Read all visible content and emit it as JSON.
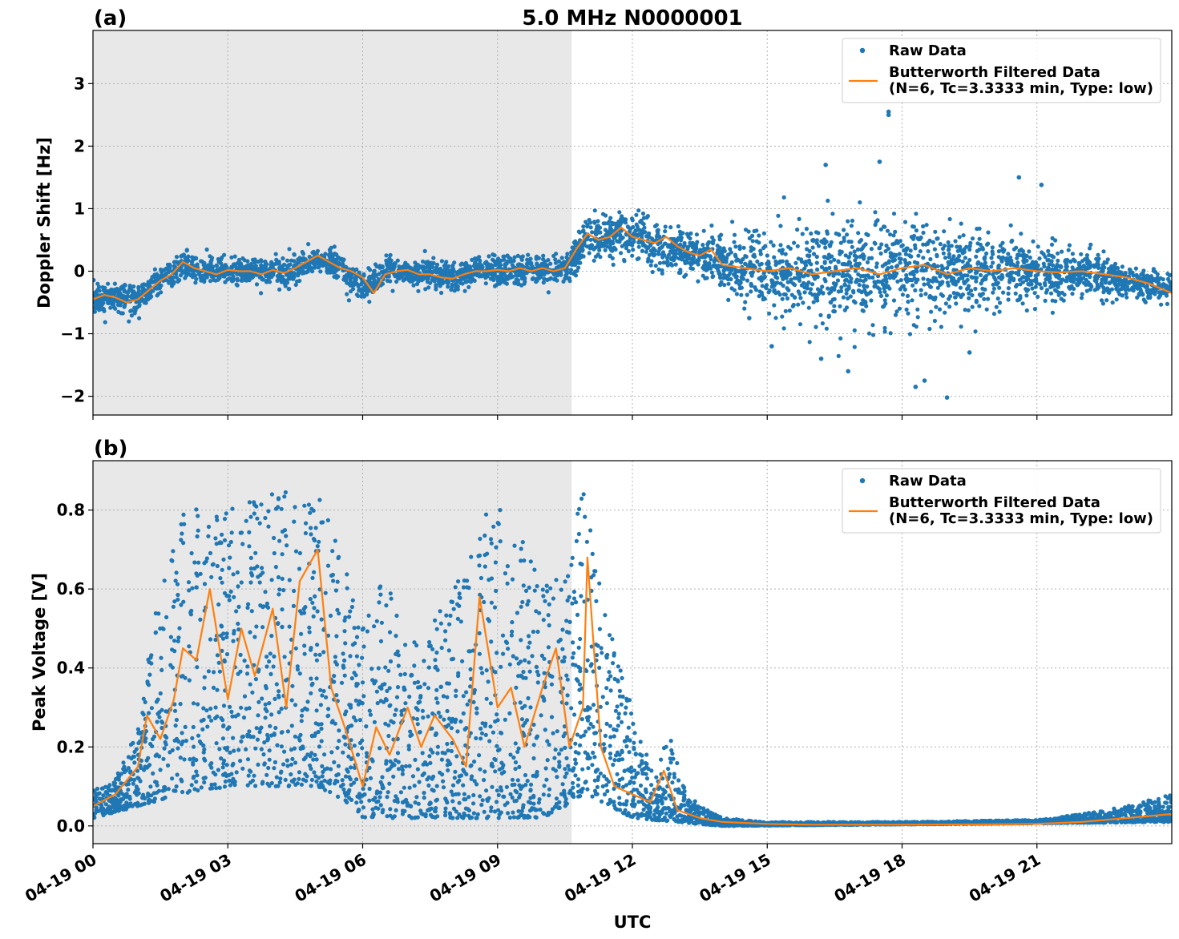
{
  "chart_data": [
    {
      "type": "scatter",
      "panel_label": "(a)",
      "title": "5.0 MHz N0000001",
      "xlabel": "",
      "ylabel": "Doppler Shift [Hz]",
      "x_range_hours": [
        0,
        24
      ],
      "ylim": [
        -2.3,
        3.85
      ],
      "y_ticks": [
        -2,
        -1,
        0,
        1,
        2,
        3
      ],
      "y_tick_labels": [
        "−2",
        "−1",
        "0",
        "1",
        "2",
        "3"
      ],
      "x_ticks_hours": [
        0,
        3,
        6,
        9,
        12,
        15,
        18,
        21
      ],
      "x_tick_labels": [],
      "grid": true,
      "shaded_region_hours": [
        0,
        10.65
      ],
      "legend_position": "top-right",
      "series": [
        {
          "name": "Raw Data",
          "kind": "points",
          "color": "#1f77b4",
          "trend_x": [
            0,
            0.5,
            1,
            1.5,
            2,
            2.5,
            3,
            3.5,
            4,
            4.5,
            5,
            5.5,
            6,
            6.5,
            7,
            7.5,
            8,
            8.5,
            9,
            9.5,
            10,
            10.5,
            11,
            11.5,
            12,
            12.5,
            13,
            13.5,
            14,
            15,
            16,
            17,
            18,
            19,
            20,
            21,
            22,
            23,
            24
          ],
          "trend_y": [
            -0.45,
            -0.4,
            -0.45,
            -0.15,
            0.1,
            0.0,
            0.0,
            0.0,
            0.0,
            0.0,
            0.22,
            0.05,
            -0.3,
            0.0,
            -0.05,
            -0.05,
            -0.1,
            0.0,
            0.0,
            0.0,
            0.0,
            0.0,
            0.55,
            0.55,
            0.6,
            0.4,
            0.3,
            0.25,
            0.1,
            0.0,
            0.0,
            0.0,
            0.0,
            0.0,
            0.0,
            0.0,
            -0.05,
            -0.15,
            -0.3
          ],
          "spread_x": [
            0,
            10.6,
            10.7,
            14,
            15,
            16,
            17,
            18,
            19,
            20,
            21,
            22,
            23,
            24
          ],
          "spread_y": [
            0.25,
            0.25,
            0.35,
            0.4,
            0.6,
            0.85,
            0.95,
            0.95,
            0.8,
            0.65,
            0.5,
            0.4,
            0.3,
            0.25
          ],
          "outliers": [
            [
              17.7,
              2.55
            ],
            [
              17.7,
              2.5
            ],
            [
              18.3,
              -1.85
            ],
            [
              19.0,
              -2.02
            ],
            [
              17.5,
              1.75
            ],
            [
              16.3,
              1.7
            ],
            [
              20.6,
              1.5
            ],
            [
              21.1,
              1.38
            ],
            [
              14.6,
              -0.75
            ],
            [
              15.1,
              -1.2
            ],
            [
              16.2,
              -1.4
            ],
            [
              16.8,
              -1.6
            ],
            [
              18.5,
              -1.75
            ],
            [
              19.5,
              -1.3
            ]
          ]
        },
        {
          "name": "Butterworth Filtered Data\n(N=6, Tc=3.3333 min, Type: low)",
          "kind": "line",
          "color": "#ff7f0e",
          "x": [
            0,
            0.25,
            0.5,
            0.75,
            1,
            1.25,
            1.5,
            1.75,
            2,
            2.25,
            2.5,
            2.75,
            3,
            3.25,
            3.5,
            3.75,
            4,
            4.25,
            4.5,
            4.75,
            5,
            5.25,
            5.5,
            5.75,
            6,
            6.25,
            6.5,
            6.75,
            7,
            7.25,
            7.5,
            7.75,
            8,
            8.25,
            8.5,
            8.75,
            9,
            9.25,
            9.5,
            9.75,
            10,
            10.25,
            10.5,
            10.75,
            11,
            11.25,
            11.5,
            11.75,
            12,
            12.25,
            12.5,
            12.75,
            13,
            13.25,
            13.5,
            13.75,
            14,
            14.5,
            15,
            15.5,
            16,
            16.5,
            17,
            17.5,
            18,
            18.5,
            19,
            19.5,
            20,
            20.5,
            21,
            21.5,
            22,
            22.5,
            23,
            23.5,
            24
          ],
          "y": [
            -0.45,
            -0.38,
            -0.42,
            -0.5,
            -0.45,
            -0.3,
            -0.15,
            -0.05,
            0.15,
            0.05,
            0.0,
            -0.05,
            0.02,
            0.0,
            0.0,
            -0.05,
            0.02,
            -0.03,
            0.05,
            0.15,
            0.25,
            0.15,
            0.05,
            0.0,
            -0.1,
            -0.35,
            -0.05,
            0.0,
            0.02,
            -0.05,
            -0.05,
            -0.1,
            -0.12,
            -0.05,
            0.0,
            0.0,
            0.02,
            0.0,
            0.05,
            0.0,
            0.05,
            0.0,
            0.05,
            0.35,
            0.6,
            0.5,
            0.55,
            0.7,
            0.55,
            0.5,
            0.45,
            0.55,
            0.4,
            0.3,
            0.25,
            0.35,
            0.1,
            0.05,
            0.0,
            0.05,
            -0.05,
            0.0,
            0.05,
            -0.05,
            0.05,
            0.1,
            -0.05,
            0.05,
            0.0,
            0.05,
            0.0,
            -0.02,
            0.0,
            -0.05,
            -0.1,
            -0.2,
            -0.35
          ]
        }
      ]
    },
    {
      "type": "scatter",
      "panel_label": "(b)",
      "title": "",
      "xlabel": "UTC",
      "ylabel": "Peak Voltage [V]",
      "x_range_hours": [
        0,
        24
      ],
      "ylim": [
        -0.045,
        0.925
      ],
      "y_ticks": [
        0.0,
        0.2,
        0.4,
        0.6,
        0.8
      ],
      "y_tick_labels": [
        "0.0",
        "0.2",
        "0.4",
        "0.6",
        "0.8"
      ],
      "x_ticks_hours": [
        0,
        3,
        6,
        9,
        12,
        15,
        18,
        21
      ],
      "x_tick_labels": [
        "04-19 00",
        "04-19 03",
        "04-19 06",
        "04-19 09",
        "04-19 12",
        "04-19 15",
        "04-19 18",
        "04-19 21"
      ],
      "grid": true,
      "shaded_region_hours": [
        0,
        10.65
      ],
      "legend_position": "top-right",
      "series": [
        {
          "name": "Raw Data",
          "kind": "points",
          "color": "#1f77b4",
          "upper_x": [
            0,
            0.5,
            1,
            1.3,
            1.6,
            2,
            2.5,
            3,
            3.5,
            4,
            4.5,
            5,
            5.5,
            5.9,
            6.0,
            6.5,
            7,
            7.5,
            8,
            8.5,
            9,
            9.5,
            10,
            10.5,
            10.9,
            11.0,
            11.3,
            11.6,
            12,
            12.5,
            12.8,
            13.2,
            13.6,
            14,
            15,
            18,
            21,
            22,
            23,
            24
          ],
          "upper_y": [
            0.09,
            0.12,
            0.25,
            0.5,
            0.65,
            0.8,
            0.83,
            0.82,
            0.83,
            0.88,
            0.82,
            0.86,
            0.7,
            0.55,
            0.5,
            0.65,
            0.45,
            0.5,
            0.6,
            0.72,
            0.86,
            0.75,
            0.62,
            0.66,
            0.87,
            0.8,
            0.6,
            0.45,
            0.3,
            0.12,
            0.24,
            0.08,
            0.05,
            0.02,
            0.01,
            0.01,
            0.015,
            0.03,
            0.05,
            0.08
          ],
          "lower_x": [
            0,
            1,
            2,
            3,
            4,
            5,
            5.8,
            6.0,
            7,
            8,
            9,
            10,
            10.5,
            11,
            12,
            13,
            14,
            24
          ],
          "lower_y": [
            0.02,
            0.05,
            0.08,
            0.1,
            0.1,
            0.1,
            0.05,
            0.02,
            0.02,
            0.02,
            0.02,
            0.02,
            0.05,
            0.08,
            0.02,
            0.01,
            0.0,
            0.01
          ]
        },
        {
          "name": "Butterworth Filtered Data\n(N=6, Tc=3.3333 min, Type: low)",
          "kind": "line",
          "color": "#ff7f0e",
          "x": [
            0,
            0.5,
            1,
            1.2,
            1.5,
            1.8,
            2,
            2.3,
            2.6,
            3,
            3.3,
            3.6,
            4,
            4.3,
            4.6,
            5,
            5.3,
            5.6,
            6.0,
            6.3,
            6.6,
            7,
            7.3,
            7.6,
            8,
            8.3,
            8.6,
            9,
            9.3,
            9.6,
            10,
            10.3,
            10.6,
            10.9,
            11.0,
            11.3,
            11.6,
            12,
            12.4,
            12.7,
            13,
            13.5,
            14,
            15,
            16,
            18,
            20,
            21,
            22,
            23,
            24
          ],
          "y": [
            0.05,
            0.08,
            0.15,
            0.28,
            0.22,
            0.32,
            0.45,
            0.42,
            0.6,
            0.32,
            0.5,
            0.38,
            0.55,
            0.3,
            0.62,
            0.7,
            0.35,
            0.25,
            0.1,
            0.25,
            0.18,
            0.3,
            0.2,
            0.28,
            0.22,
            0.15,
            0.58,
            0.3,
            0.35,
            0.2,
            0.35,
            0.45,
            0.2,
            0.3,
            0.68,
            0.2,
            0.1,
            0.08,
            0.06,
            0.14,
            0.04,
            0.02,
            0.01,
            0.005,
            0.003,
            0.003,
            0.004,
            0.005,
            0.01,
            0.02,
            0.03
          ]
        }
      ]
    }
  ]
}
